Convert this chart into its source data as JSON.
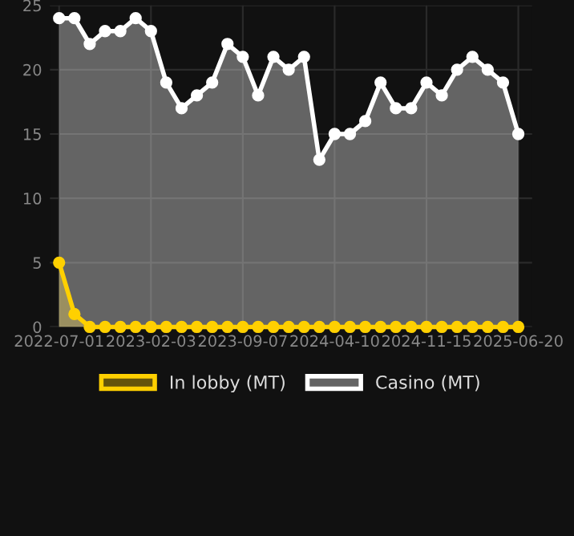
{
  "chart_data": {
    "type": "area",
    "categories": [
      "2022-07-01",
      null,
      null,
      null,
      null,
      null,
      "2023-02-03",
      null,
      null,
      null,
      null,
      null,
      "2023-09-07",
      null,
      null,
      null,
      null,
      null,
      "2024-04-10",
      null,
      null,
      null,
      null,
      null,
      "2024-11-15",
      null,
      null,
      null,
      null,
      null,
      "2025-06-20"
    ],
    "series": [
      {
        "name": "In lobby (MT)",
        "color": "#ffd000",
        "values": [
          5,
          1,
          0,
          0,
          0,
          0,
          0,
          0,
          0,
          0,
          0,
          0,
          0,
          0,
          0,
          0,
          0,
          0,
          0,
          0,
          0,
          0,
          0,
          0,
          0,
          0,
          0,
          0,
          0,
          0,
          0
        ]
      },
      {
        "name": "Casino (MT)",
        "color": "#ffffff",
        "values": [
          24,
          24,
          22,
          23,
          23,
          24,
          23,
          19,
          17,
          18,
          19,
          22,
          21,
          18,
          21,
          20,
          21,
          13,
          15,
          15,
          16,
          19,
          17,
          17,
          19,
          18,
          20,
          21,
          20,
          19,
          15
        ]
      }
    ],
    "ylim": [
      0,
      25
    ],
    "yticks": [
      0,
      5,
      10,
      15,
      20,
      25
    ],
    "grid": true,
    "legend": "bottom",
    "marker": "circle"
  }
}
